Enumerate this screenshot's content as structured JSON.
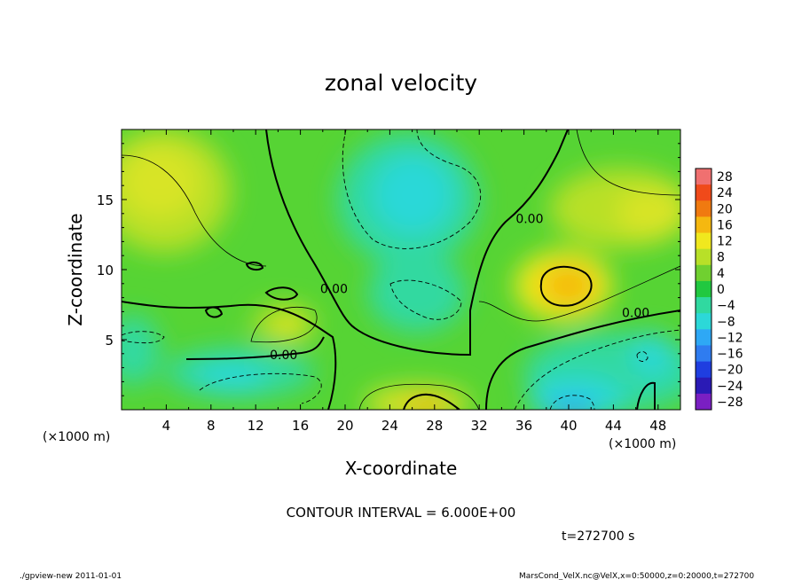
{
  "chart_data": {
    "type": "heatmap",
    "title": "zonal velocity",
    "xlabel": "X-coordinate",
    "ylabel": "Z-coordinate",
    "x_unit": "(×1000 m)",
    "x_unit_right": "(×1000 m)",
    "z_unit": "(×1000 m)",
    "xlim": [
      0,
      50
    ],
    "ylim": [
      0,
      20
    ],
    "x_ticks": [
      4,
      8,
      12,
      16,
      20,
      24,
      28,
      32,
      36,
      40,
      44,
      48
    ],
    "y_ticks": [
      5,
      10,
      15
    ],
    "contour_interval_label": "CONTOUR INTERVAL = 6.000E+00",
    "time_label": "t=272700 s",
    "contour_labels": [
      {
        "text": "0.00",
        "x": 14.5,
        "y": 3.8
      },
      {
        "text": "0.00",
        "x": 19,
        "y": 8.5
      },
      {
        "text": "0.00",
        "x": 36.5,
        "y": 13.5
      },
      {
        "text": "0.00",
        "x": 46,
        "y": 6.8
      }
    ],
    "colorbar": {
      "levels": [
        -28,
        -24,
        -20,
        -16,
        -12,
        -8,
        -4,
        0,
        4,
        8,
        12,
        16,
        20,
        24,
        28
      ],
      "colors": [
        "#7a1fc2",
        "#2a1ab5",
        "#1f3ee0",
        "#2f7cf0",
        "#2ea8f5",
        "#2cd8d8",
        "#30d9a0",
        "#21c840",
        "#70d030",
        "#b8e028",
        "#f0e81e",
        "#f5b810",
        "#f07a10",
        "#f04a1a",
        "#f07070"
      ]
    },
    "field_features": [
      {
        "kind": "max",
        "x": 39.8,
        "y": 8.7,
        "value": 12
      },
      {
        "kind": "max",
        "x": 27.8,
        "y": 0.6,
        "value": 10
      },
      {
        "kind": "max",
        "x": 15,
        "y": 5.9,
        "value": 8
      },
      {
        "kind": "min",
        "x": 26.5,
        "y": 15.5,
        "value": -9
      },
      {
        "kind": "min",
        "x": 40.5,
        "y": 0.8,
        "value": -12
      },
      {
        "kind": "min",
        "x": 47,
        "y": 3.5,
        "value": -11
      },
      {
        "kind": "min",
        "x": 11,
        "y": 2.5,
        "value": -8
      },
      {
        "kind": "max",
        "x": 5,
        "y": 15.5,
        "value": 7
      },
      {
        "kind": "max",
        "x": 46,
        "y": 13.5,
        "value": 7
      }
    ]
  },
  "footer": {
    "left": "./gpview-new  2011-01-01",
    "right": "MarsCond_VelX.nc@VelX,x=0:50000,z=0:20000,t=272700"
  }
}
